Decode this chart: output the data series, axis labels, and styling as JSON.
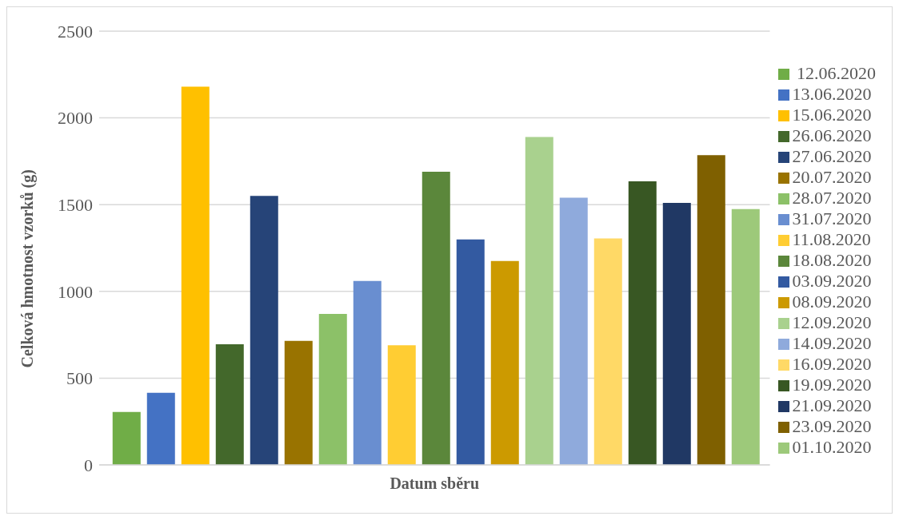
{
  "chart_data": {
    "type": "bar",
    "xlabel": "Datum sběru",
    "ylabel": "Celková hmotnost vzorků (g)",
    "categories": [
      null
    ],
    "series": [
      {
        "name": " 12.06.2020",
        "color": "#70ad47",
        "values": [
          305
        ]
      },
      {
        "name": "13.06.2020",
        "color": "#4472c4",
        "values": [
          415
        ]
      },
      {
        "name": "15.06.2020",
        "color": "#ffc000",
        "values": [
          2180
        ]
      },
      {
        "name": "26.06.2020",
        "color": "#43682b",
        "values": [
          695
        ]
      },
      {
        "name": "27.06.2020",
        "color": "#264478",
        "values": [
          1550
        ]
      },
      {
        "name": "20.07.2020",
        "color": "#997300",
        "values": [
          715
        ]
      },
      {
        "name": "28.07.2020",
        "color": "#8cc168",
        "values": [
          870
        ]
      },
      {
        "name": "31.07.2020",
        "color": "#698ed0",
        "values": [
          1060
        ]
      },
      {
        "name": "11.08.2020",
        "color": "#ffcd33",
        "values": [
          690
        ]
      },
      {
        "name": "18.08.2020",
        "color": "#5b873b",
        "values": [
          1690
        ]
      },
      {
        "name": "03.09.2020",
        "color": "#335aa1",
        "values": [
          1300
        ]
      },
      {
        "name": "08.09.2020",
        "color": "#cc9a00",
        "values": [
          1175
        ]
      },
      {
        "name": "12.09.2020",
        "color": "#a9d18e",
        "values": [
          1890
        ]
      },
      {
        "name": "14.09.2020",
        "color": "#8faadc",
        "values": [
          1540
        ]
      },
      {
        "name": "16.09.2020",
        "color": "#ffd966",
        "values": [
          1305
        ]
      },
      {
        "name": "19.09.2020",
        "color": "#385723",
        "values": [
          1635
        ]
      },
      {
        "name": "21.09.2020",
        "color": "#203864",
        "values": [
          1510
        ]
      },
      {
        "name": "23.09.2020",
        "color": "#7f6000",
        "values": [
          1785
        ]
      },
      {
        "name": "01.10.2020",
        "color": "#9dc97a",
        "values": [
          1475
        ]
      }
    ],
    "ylim": [
      0,
      2500
    ],
    "yticks": [
      0,
      500,
      1000,
      1500,
      2000,
      2500
    ],
    "grid": "y",
    "legend": "right"
  }
}
